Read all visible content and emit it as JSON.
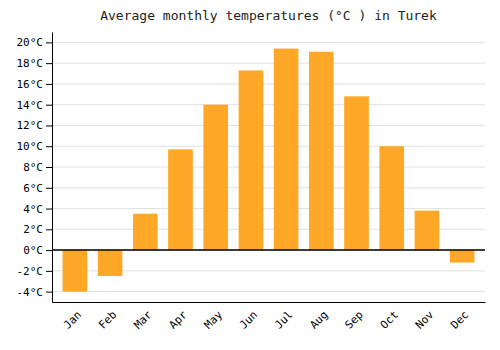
{
  "chart_data": {
    "type": "bar",
    "title": "Average monthly temperatures (°C ) in Turek",
    "categories": [
      "Jan",
      "Feb",
      "Mar",
      "Apr",
      "May",
      "Jun",
      "Jul",
      "Aug",
      "Sep",
      "Oct",
      "Nov",
      "Dec"
    ],
    "values": [
      -4.0,
      -2.5,
      3.5,
      9.7,
      14.0,
      17.3,
      19.4,
      19.1,
      14.8,
      10.0,
      3.8,
      -1.2
    ],
    "color": "#FFA726",
    "ylim": [
      -5,
      21
    ],
    "yticks": [
      {
        "value": -4,
        "label": "-4°C"
      },
      {
        "value": -2,
        "label": "-2°C"
      },
      {
        "value": 0,
        "label": "0°C"
      },
      {
        "value": 2,
        "label": "2°C"
      },
      {
        "value": 4,
        "label": "4°C"
      },
      {
        "value": 6,
        "label": "6°C"
      },
      {
        "value": 8,
        "label": "8°C"
      },
      {
        "value": 10,
        "label": "10°C"
      },
      {
        "value": 12,
        "label": "12°C"
      },
      {
        "value": 14,
        "label": "14°C"
      },
      {
        "value": 16,
        "label": "16°C"
      },
      {
        "value": 18,
        "label": "18°C"
      },
      {
        "value": 20,
        "label": "20°C"
      }
    ],
    "grid": true
  }
}
